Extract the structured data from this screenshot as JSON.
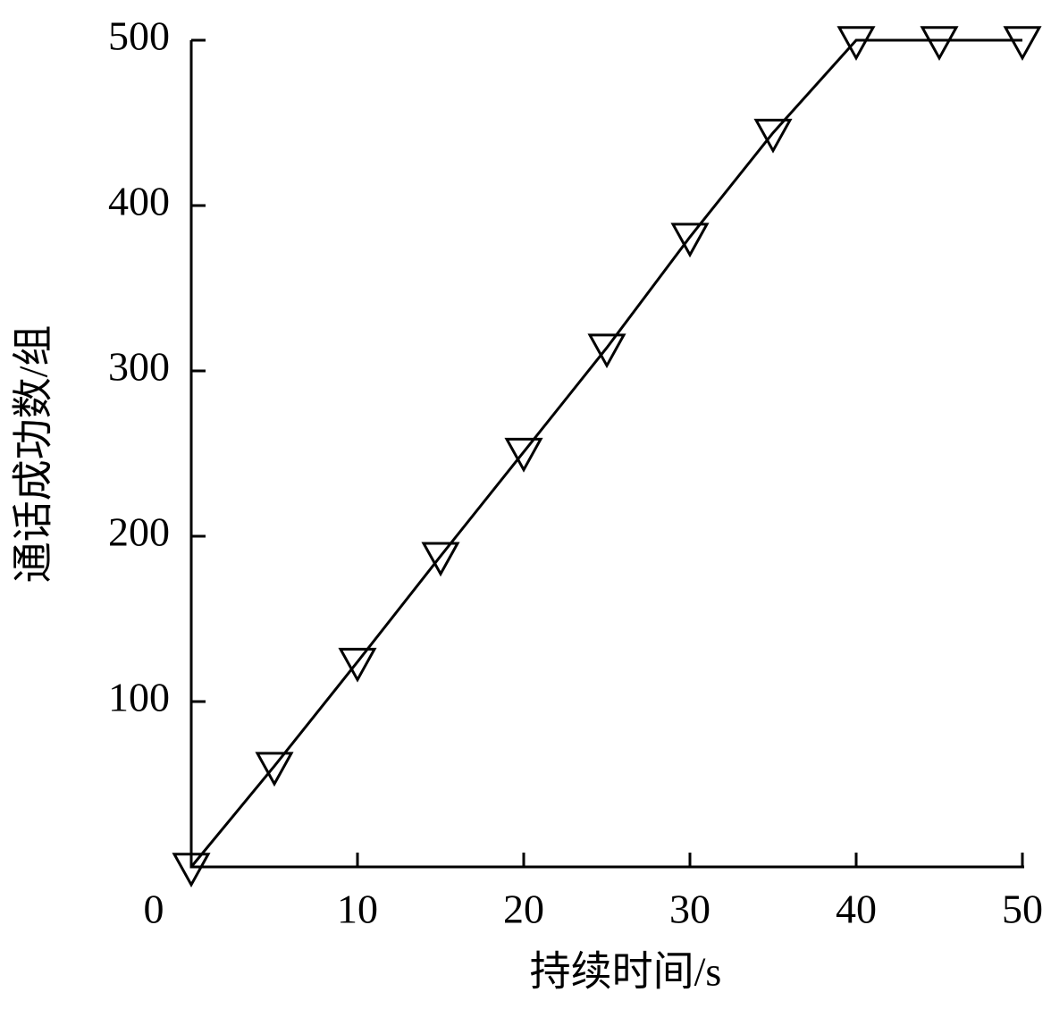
{
  "chart_data": {
    "type": "line",
    "x_label": "持续时间/s",
    "y_label": "通话成功数/组",
    "x": [
      0,
      5,
      10,
      15,
      20,
      25,
      30,
      35,
      40,
      45,
      50
    ],
    "values": [
      0,
      61,
      124,
      188,
      251,
      314,
      381,
      444,
      500,
      500,
      500
    ],
    "color": "#000000",
    "marker": "triangle-down",
    "xlim": [
      0,
      50
    ],
    "xticks": [
      0,
      10,
      20,
      30,
      40,
      50
    ],
    "ylim": [
      0,
      500
    ],
    "yticks": [
      100,
      200,
      300,
      400,
      500
    ],
    "grid": false
  }
}
